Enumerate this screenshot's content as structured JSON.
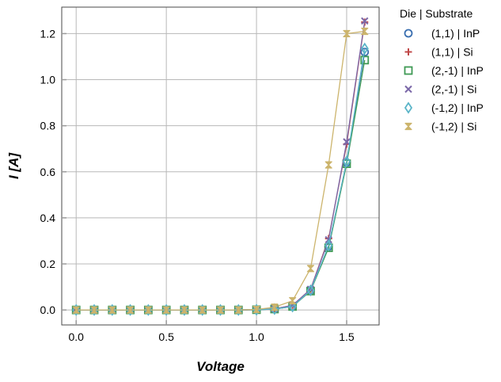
{
  "chart_data": {
    "type": "line",
    "xlabel": "Voltage",
    "ylabel": "I [A]",
    "xlim": [
      -0.08,
      1.68
    ],
    "ylim": [
      -0.065,
      1.315
    ],
    "xticks": [
      0.0,
      0.5,
      1.0,
      1.5
    ],
    "xtick_labels": [
      "0.0",
      "0.5",
      "1.0",
      "1.5"
    ],
    "yticks": [
      0.0,
      0.2,
      0.4,
      0.6,
      0.8,
      1.0,
      1.2
    ],
    "ytick_labels": [
      "0.0",
      "0.2",
      "0.4",
      "0.6",
      "0.8",
      "1.0",
      "1.2"
    ],
    "grid": true,
    "legend": {
      "title": "Die | Substrate",
      "placement": "outside-right-top"
    },
    "x": [
      0.0,
      0.1,
      0.2,
      0.3,
      0.4,
      0.5,
      0.6,
      0.7,
      0.8,
      0.9,
      1.0,
      1.1,
      1.2,
      1.3,
      1.4,
      1.5,
      1.6
    ],
    "series": [
      {
        "name": "(1,1) | InP",
        "marker": "circle",
        "color": "#3a6fb0",
        "values": [
          0,
          0,
          0,
          0,
          0,
          0,
          0,
          0,
          0,
          0,
          0.001,
          0.004,
          0.015,
          0.085,
          0.275,
          0.64,
          1.12
        ]
      },
      {
        "name": "(1,1) | Si",
        "marker": "plus",
        "color": "#c04848",
        "values": [
          0,
          0,
          0,
          0,
          0,
          0,
          0,
          0,
          0,
          0,
          0.001,
          0.005,
          0.02,
          0.09,
          0.31,
          0.72,
          1.25
        ]
      },
      {
        "name": "(2,-1) | InP",
        "marker": "square",
        "color": "#3f9a55",
        "values": [
          0,
          0,
          0,
          0,
          0,
          0,
          0,
          0,
          0,
          0,
          0.001,
          0.004,
          0.015,
          0.082,
          0.27,
          0.635,
          1.085
        ]
      },
      {
        "name": "(2,-1) | Si",
        "marker": "x",
        "color": "#7b68a8",
        "values": [
          0,
          0,
          0,
          0,
          0,
          0,
          0,
          0,
          0,
          0,
          0.001,
          0.005,
          0.02,
          0.09,
          0.305,
          0.73,
          1.255
        ]
      },
      {
        "name": "(-1,2) | InP",
        "marker": "diamond",
        "color": "#5ab4c8",
        "values": [
          0,
          0,
          0,
          0,
          0,
          0,
          0,
          0,
          0,
          0,
          0.001,
          0.004,
          0.015,
          0.085,
          0.28,
          0.645,
          1.135
        ]
      },
      {
        "name": "(-1,2) | Si",
        "marker": "hourglass",
        "color": "#ccb46c",
        "values": [
          0,
          0,
          0,
          0,
          0,
          0,
          0,
          0,
          0,
          0,
          0.002,
          0.012,
          0.04,
          0.18,
          0.63,
          1.2,
          1.21
        ]
      }
    ]
  }
}
